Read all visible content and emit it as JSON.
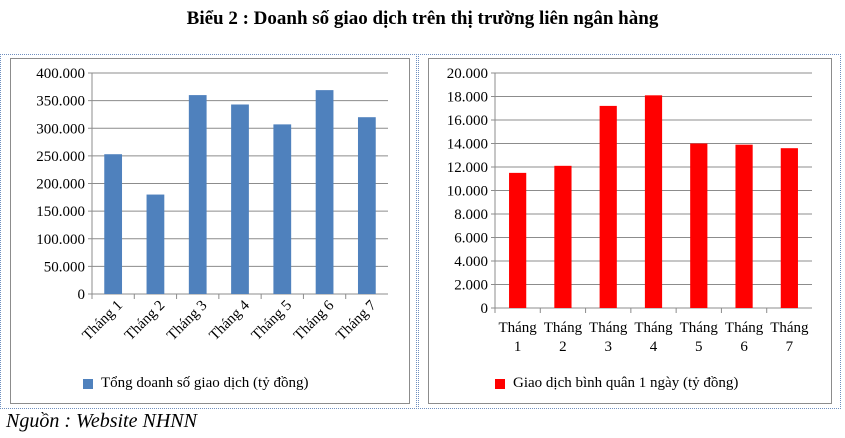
{
  "title": "Biểu 2 : Doanh số giao dịch trên thị trường liên ngân hàng",
  "source": "Nguồn : Website NHNN",
  "chart_data": [
    {
      "type": "bar",
      "categories": [
        "Tháng 1",
        "Tháng 2",
        "Tháng 3",
        "Tháng 4",
        "Tháng 5",
        "Tháng 6",
        "Tháng 7"
      ],
      "series": [
        {
          "name": "Tổng doanh số giao dịch (tỷ đồng)",
          "color": "#4f81bd",
          "values": [
            253000,
            180000,
            360000,
            343000,
            307000,
            369000,
            320000
          ]
        }
      ],
      "ylim": [
        0,
        400000
      ],
      "yticks": [
        "0",
        "50.000",
        "100.000",
        "150.000",
        "200.000",
        "250.000",
        "300.000",
        "350.000",
        "400.000"
      ],
      "xlabel_style": "rotated",
      "grid": true,
      "legend": "bottom"
    },
    {
      "type": "bar",
      "categories": [
        "Tháng 1",
        "Tháng 2",
        "Tháng 3",
        "Tháng 4",
        "Tháng 5",
        "Tháng 6",
        "Tháng 7"
      ],
      "series": [
        {
          "name": "Giao dịch bình quân 1 ngày (tỷ đồng)",
          "color": "#ff0000",
          "values": [
            11500,
            12100,
            17200,
            18100,
            14000,
            13900,
            13600
          ]
        }
      ],
      "ylim": [
        0,
        20000
      ],
      "yticks": [
        "0",
        "2.000",
        "4.000",
        "6.000",
        "8.000",
        "10.000",
        "12.000",
        "14.000",
        "16.000",
        "18.000",
        "20.000"
      ],
      "xlabel_style": "wrapped",
      "grid": true,
      "legend": "bottom"
    }
  ]
}
